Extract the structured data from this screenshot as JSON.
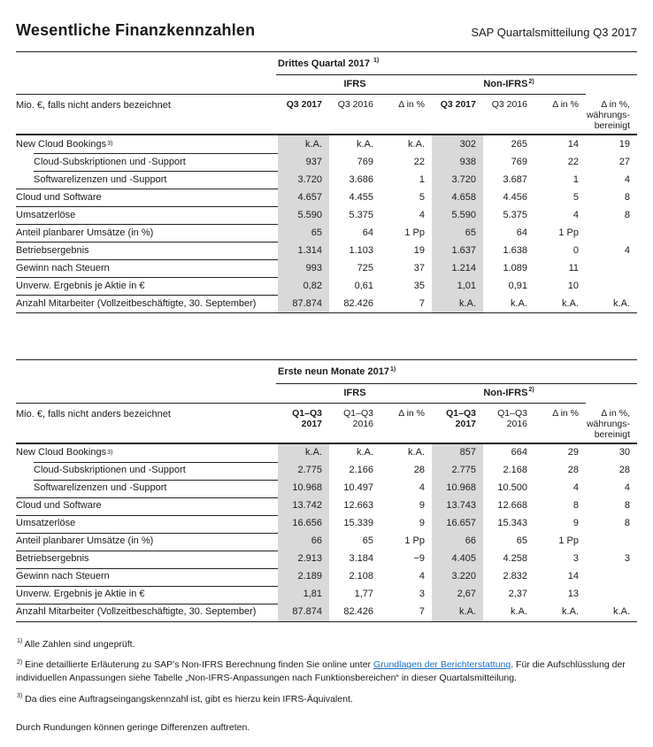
{
  "header": {
    "title": "Wesentliche Finanzkennzahlen",
    "subtitle": "SAP Quartalsmitteilung Q3 2017"
  },
  "tables": [
    {
      "period": "Drittes Quartal 2017 ",
      "period_sup": "1)",
      "group_ifrs": "IFRS",
      "group_non_ifrs": "Non-IFRS",
      "group_non_ifrs_sup": "2)",
      "unit_label": "Mio. €, falls nicht anders bezeichnet",
      "columns": [
        {
          "lines": [
            "Q3 2017"
          ],
          "bold": true
        },
        {
          "lines": [
            "Q3 2016"
          ],
          "bold": false
        },
        {
          "lines": [
            "Δ in %"
          ],
          "bold": false
        },
        {
          "lines": [
            "Q3 2017"
          ],
          "bold": true
        },
        {
          "lines": [
            "Q3 2016"
          ],
          "bold": false
        },
        {
          "lines": [
            "Δ in %"
          ],
          "bold": false
        },
        {
          "lines": [
            "Δ in %,",
            "währungs-",
            "bereinigt"
          ],
          "bold": false
        }
      ],
      "rows": [
        {
          "label": "New Cloud Bookings",
          "sup": "3)",
          "indent": false,
          "values": [
            "k.A.",
            "k.A.",
            "k.A.",
            "302",
            "265",
            "14",
            "19"
          ]
        },
        {
          "label": "Cloud-Subskriptionen und -Support",
          "sup": "",
          "indent": true,
          "values": [
            "937",
            "769",
            "22",
            "938",
            "769",
            "22",
            "27"
          ]
        },
        {
          "label": "Softwarelizenzen und -Support",
          "sup": "",
          "indent": true,
          "values": [
            "3.720",
            "3.686",
            "1",
            "3.720",
            "3.687",
            "1",
            "4"
          ]
        },
        {
          "label": "Cloud und Software",
          "sup": "",
          "indent": false,
          "values": [
            "4.657",
            "4.455",
            "5",
            "4.658",
            "4.456",
            "5",
            "8"
          ]
        },
        {
          "label": "Umsatzerlöse",
          "sup": "",
          "indent": false,
          "values": [
            "5.590",
            "5.375",
            "4",
            "5.590",
            "5.375",
            "4",
            "8"
          ]
        },
        {
          "label": "Anteil planbarer Umsätze (in %)",
          "sup": "",
          "indent": false,
          "values": [
            "65",
            "64",
            "1 Pp",
            "65",
            "64",
            "1 Pp",
            ""
          ]
        },
        {
          "label": "Betriebsergebnis",
          "sup": "",
          "indent": false,
          "values": [
            "1.314",
            "1.103",
            "19",
            "1.637",
            "1.638",
            "0",
            "4"
          ]
        },
        {
          "label": "Gewinn nach Steuern",
          "sup": "",
          "indent": false,
          "values": [
            "993",
            "725",
            "37",
            "1.214",
            "1.089",
            "11",
            ""
          ]
        },
        {
          "label": "Unverw. Ergebnis je Aktie in €",
          "sup": "",
          "indent": false,
          "values": [
            "0,82",
            "0,61",
            "35",
            "1,01",
            "0,91",
            "10",
            ""
          ]
        },
        {
          "label": "Anzahl Mitarbeiter (Vollzeitbeschäftigte, 30. September)",
          "sup": "",
          "indent": false,
          "values": [
            "87.874",
            "82.426",
            "7",
            "k.A.",
            "k.A.",
            "k.A.",
            "k.A."
          ]
        }
      ]
    },
    {
      "period": "Erste neun Monate 2017",
      "period_sup": "1)",
      "group_ifrs": "IFRS",
      "group_non_ifrs": "Non-IFRS",
      "group_non_ifrs_sup": "2)",
      "unit_label": "Mio. €, falls nicht anders bezeichnet",
      "columns": [
        {
          "lines": [
            "Q1–Q3",
            "2017"
          ],
          "bold": true
        },
        {
          "lines": [
            "Q1–Q3",
            "2016"
          ],
          "bold": false
        },
        {
          "lines": [
            "Δ in %"
          ],
          "bold": false
        },
        {
          "lines": [
            "Q1–Q3",
            "2017"
          ],
          "bold": true
        },
        {
          "lines": [
            "Q1–Q3",
            "2016"
          ],
          "bold": false
        },
        {
          "lines": [
            "Δ in %"
          ],
          "bold": false
        },
        {
          "lines": [
            "Δ in %,",
            "währungs-",
            "bereinigt"
          ],
          "bold": false
        }
      ],
      "rows": [
        {
          "label": "New Cloud Bookings",
          "sup": "3)",
          "indent": false,
          "values": [
            "k.A.",
            "k.A.",
            "k.A.",
            "857",
            "664",
            "29",
            "30"
          ]
        },
        {
          "label": "Cloud-Subskriptionen und -Support",
          "sup": "",
          "indent": true,
          "values": [
            "2.775",
            "2.166",
            "28",
            "2.775",
            "2.168",
            "28",
            "28"
          ]
        },
        {
          "label": "Softwarelizenzen und -Support",
          "sup": "",
          "indent": true,
          "values": [
            "10.968",
            "10.497",
            "4",
            "10.968",
            "10.500",
            "4",
            "4"
          ]
        },
        {
          "label": "Cloud und Software",
          "sup": "",
          "indent": false,
          "values": [
            "13.742",
            "12.663",
            "9",
            "13.743",
            "12.668",
            "8",
            "8"
          ]
        },
        {
          "label": "Umsatzerlöse",
          "sup": "",
          "indent": false,
          "values": [
            "16.656",
            "15.339",
            "9",
            "16.657",
            "15.343",
            "9",
            "8"
          ]
        },
        {
          "label": "Anteil planbarer Umsätze (in %)",
          "sup": "",
          "indent": false,
          "values": [
            "66",
            "65",
            "1 Pp",
            "66",
            "65",
            "1 Pp",
            ""
          ]
        },
        {
          "label": "Betriebsergebnis",
          "sup": "",
          "indent": false,
          "values": [
            "2.913",
            "3.184",
            "−9",
            "4.405",
            "4.258",
            "3",
            "3"
          ]
        },
        {
          "label": "Gewinn nach Steuern",
          "sup": "",
          "indent": false,
          "values": [
            "2.189",
            "2.108",
            "4",
            "3.220",
            "2.832",
            "14",
            ""
          ]
        },
        {
          "label": "Unverw. Ergebnis je Aktie in €",
          "sup": "",
          "indent": false,
          "values": [
            "1,81",
            "1,77",
            "3",
            "2,67",
            "2,37",
            "13",
            ""
          ]
        },
        {
          "label": "Anzahl Mitarbeiter (Vollzeitbeschäftigte, 30. September)",
          "sup": "",
          "indent": false,
          "values": [
            "87.874",
            "82.426",
            "7",
            "k.A.",
            "k.A.",
            "k.A.",
            "k.A."
          ]
        }
      ]
    }
  ],
  "footnotes": [
    {
      "sup": "1)",
      "text": "Alle Zahlen sind ungeprüft."
    },
    {
      "sup": "2)",
      "text_before_link": "Eine detaillierte Erläuterung zu SAP’s Non-IFRS Berechnung finden Sie online unter ",
      "link_text": "Grundlagen der Berichterstattung",
      "text_after_link": ". Für die Aufschlüsslung der individuellen Anpassungen siehe Tabelle „Non-IFRS-Anpassungen nach Funktionsbereichen“ in dieser Quartalsmitteilung."
    },
    {
      "sup": "3)",
      "text": "Da dies eine Auftragseingangskennzahl ist, gibt es hierzu kein IFRS-Äquivalent."
    }
  ],
  "rounding_note": "Durch Rundungen können geringe Differenzen auftreten.",
  "colors": {
    "shaded_column": "#d9d9d9",
    "rule": "#222222",
    "link": "#1b6ec2",
    "text": "#1a1a1a"
  }
}
